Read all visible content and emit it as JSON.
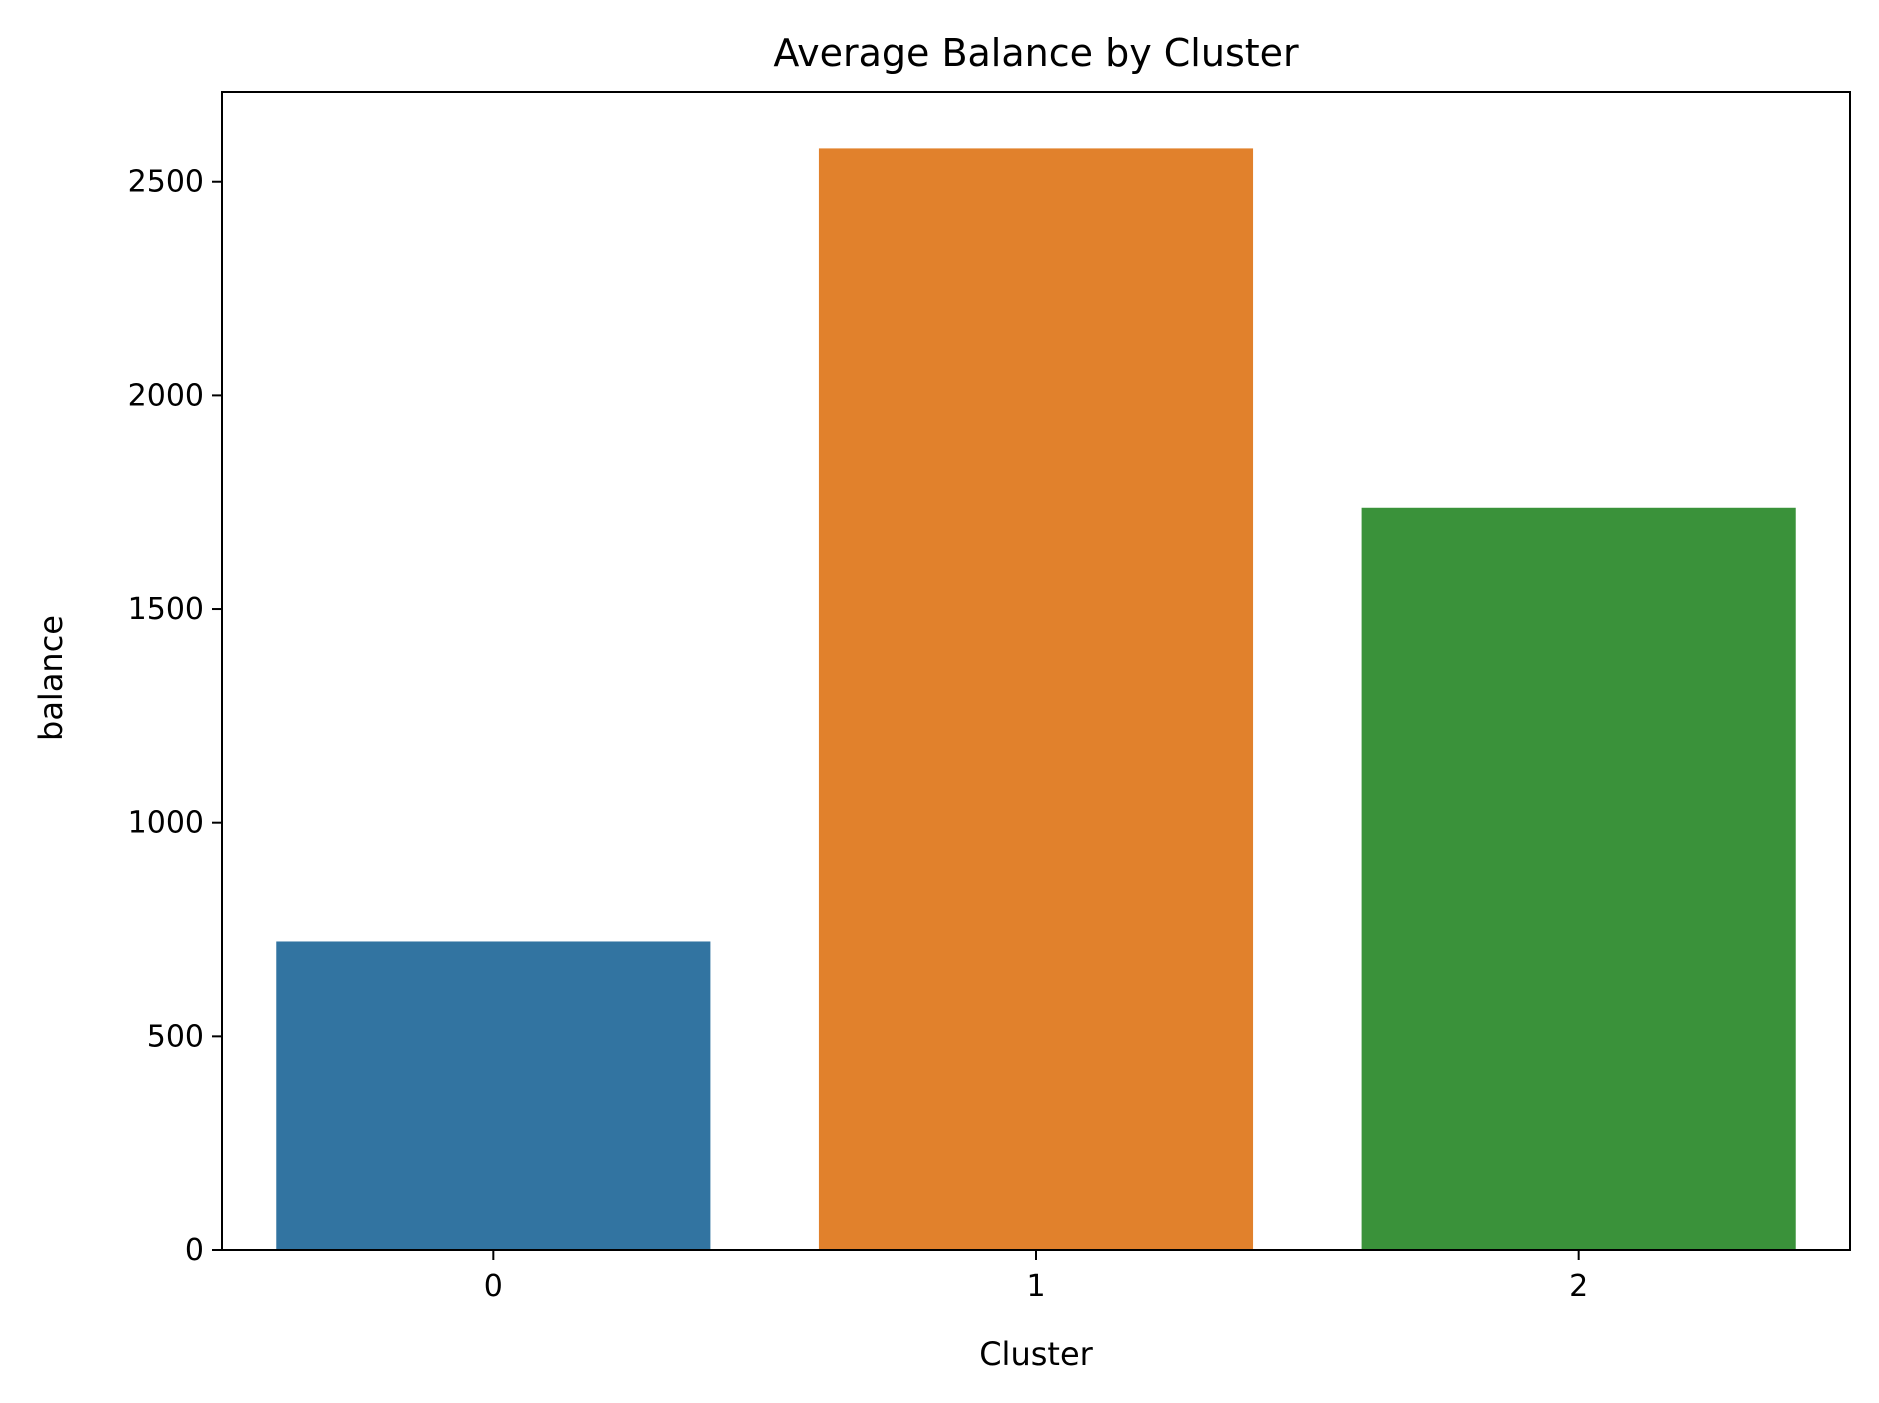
{
  "chart_data": {
    "type": "bar",
    "title": "Average Balance by Cluster",
    "xlabel": "Cluster",
    "ylabel": "balance",
    "categories": [
      "0",
      "1",
      "2"
    ],
    "values": [
      722,
      2578,
      1737
    ],
    "ylim": [
      0,
      2710
    ],
    "yticks": [
      0,
      500,
      1000,
      1500,
      2000,
      2500
    ],
    "colors": [
      "#3274a1",
      "#e1812c",
      "#3a923a"
    ],
    "grid": false,
    "legend": "none"
  }
}
